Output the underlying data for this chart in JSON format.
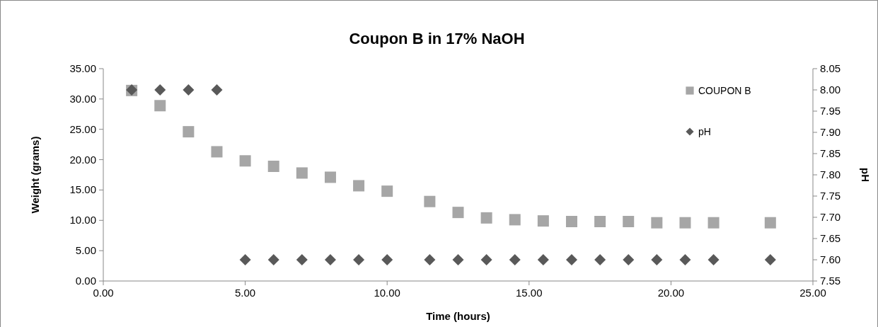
{
  "chart_data": {
    "type": "scatter",
    "title": "Coupon B in 17% NaOH",
    "xlabel": "Time (hours)",
    "ylabel": "Weight (grams)",
    "y2label": "pH",
    "x": [
      1,
      2,
      3,
      4,
      5,
      6,
      7,
      8,
      9,
      10,
      11.5,
      12.5,
      13.5,
      14.5,
      15.5,
      16.5,
      17.5,
      18.5,
      19.5,
      20.5,
      21.5,
      23.5
    ],
    "series": [
      {
        "name": "COUPON B",
        "color": "#a6a6a6",
        "marker": "square",
        "values": [
          31.4,
          28.9,
          24.6,
          21.3,
          19.8,
          18.9,
          17.8,
          17.1,
          15.7,
          14.8,
          13.1,
          11.3,
          10.4,
          10.1,
          9.9,
          9.8,
          9.8,
          9.8,
          9.6,
          9.6,
          9.6,
          9.6
        ]
      },
      {
        "name": "pH",
        "color": "#595959",
        "marker": "diamond",
        "axis": "y2",
        "values": [
          8,
          8,
          8,
          8,
          7.6,
          7.6,
          7.6,
          7.6,
          7.6,
          7.6,
          7.6,
          7.6,
          7.6,
          7.6,
          7.6,
          7.6,
          7.6,
          7.6,
          7.6,
          7.6,
          7.6,
          7.6
        ]
      }
    ],
    "xlim": [
      0,
      25
    ],
    "xticks": [
      {
        "value": 0,
        "label": "0.00"
      },
      {
        "value": 5,
        "label": "5.00"
      },
      {
        "value": 10,
        "label": "10.00"
      },
      {
        "value": 15,
        "label": "15.00"
      },
      {
        "value": 20,
        "label": "20.00"
      },
      {
        "value": 25,
        "label": "25.00"
      }
    ],
    "ylim": [
      0,
      35
    ],
    "yticks": [
      {
        "value": 0,
        "label": "0.00"
      },
      {
        "value": 5,
        "label": "5.00"
      },
      {
        "value": 10,
        "label": "10.00"
      },
      {
        "value": 15,
        "label": "15.00"
      },
      {
        "value": 20,
        "label": "20.00"
      },
      {
        "value": 25,
        "label": "25.00"
      },
      {
        "value": 30,
        "label": "30.00"
      },
      {
        "value": 35,
        "label": "35.00"
      }
    ],
    "y2lim": [
      7.55,
      8.05
    ],
    "y2ticks": [
      {
        "value": 7.55,
        "label": "7.55"
      },
      {
        "value": 7.6,
        "label": "7.60"
      },
      {
        "value": 7.65,
        "label": "7.65"
      },
      {
        "value": 7.7,
        "label": "7.70"
      },
      {
        "value": 7.75,
        "label": "7.75"
      },
      {
        "value": 7.8,
        "label": "7.80"
      },
      {
        "value": 7.85,
        "label": "7.85"
      },
      {
        "value": 7.9,
        "label": "7.90"
      },
      {
        "value": 7.95,
        "label": "7.95"
      },
      {
        "value": 8,
        "label": "8.00"
      },
      {
        "value": 8.05,
        "label": "8.05"
      }
    ],
    "grid": false,
    "legend": "top right"
  }
}
